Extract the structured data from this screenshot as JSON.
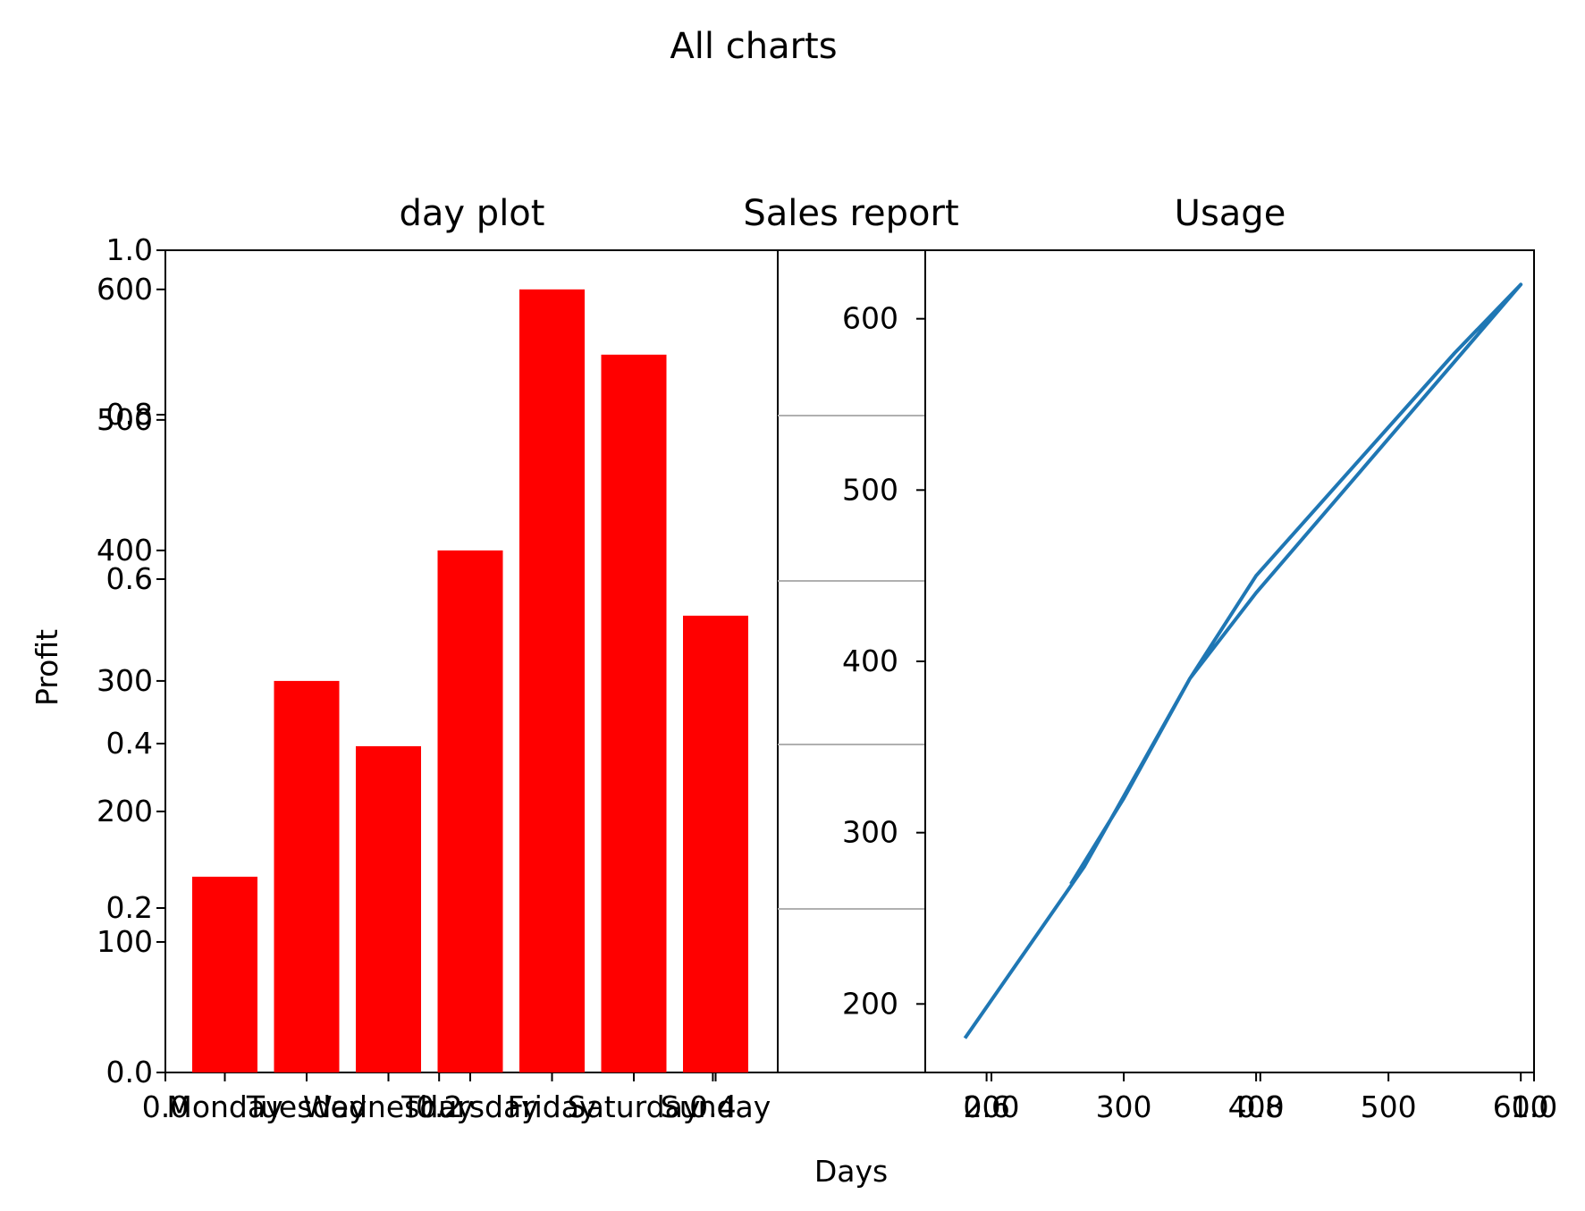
{
  "figure": {
    "title": "All charts"
  },
  "chart_data": [
    {
      "type": "bar",
      "title": "day plot",
      "xlabel": "",
      "ylabel": "Profit",
      "categories": [
        "Monday",
        "Tuesday",
        "Wednesday",
        "Thursday",
        "Friday",
        "Saturday",
        "Sunday"
      ],
      "values": [
        150,
        300,
        250,
        400,
        600,
        550,
        350
      ],
      "ylim": [
        0,
        630
      ],
      "yticks": [
        "100",
        "200",
        "300",
        "400",
        "500",
        "600"
      ],
      "color": "#ff0000",
      "grid": false
    },
    {
      "type": "line",
      "title": "Sales report",
      "xlabel": "Days",
      "ylabel": "",
      "x": [],
      "y": [],
      "grid": true,
      "grid_axis": "y",
      "grid_color": "#b0b0b0"
    },
    {
      "type": "line",
      "title": "Usage",
      "xlabel": "",
      "ylabel": "",
      "x": [
        180,
        270,
        300
      ],
      "series": [
        {
          "x": [
            180,
            270,
            350,
            400,
            550,
            600,
            500,
            400,
            350,
            300,
            260
          ],
          "y": [
            180,
            280,
            390,
            450,
            580,
            620,
            530,
            440,
            390,
            320,
            270
          ],
          "color": "#1f77b4"
        }
      ],
      "xlim": [
        150,
        610
      ],
      "ylim": [
        160,
        640
      ],
      "xticks": [
        "200",
        "300",
        "400",
        "500",
        "600"
      ],
      "yticks": [
        "200",
        "300",
        "400",
        "500",
        "600"
      ],
      "grid": false
    }
  ],
  "shared_axes": {
    "left_yticks": [
      "0.0",
      "0.2",
      "0.4",
      "0.6",
      "0.8",
      "1.0"
    ],
    "bottom_xticks": [
      "0.0",
      "0.2",
      "0.4",
      "0.6",
      "0.8",
      "1.0"
    ]
  }
}
